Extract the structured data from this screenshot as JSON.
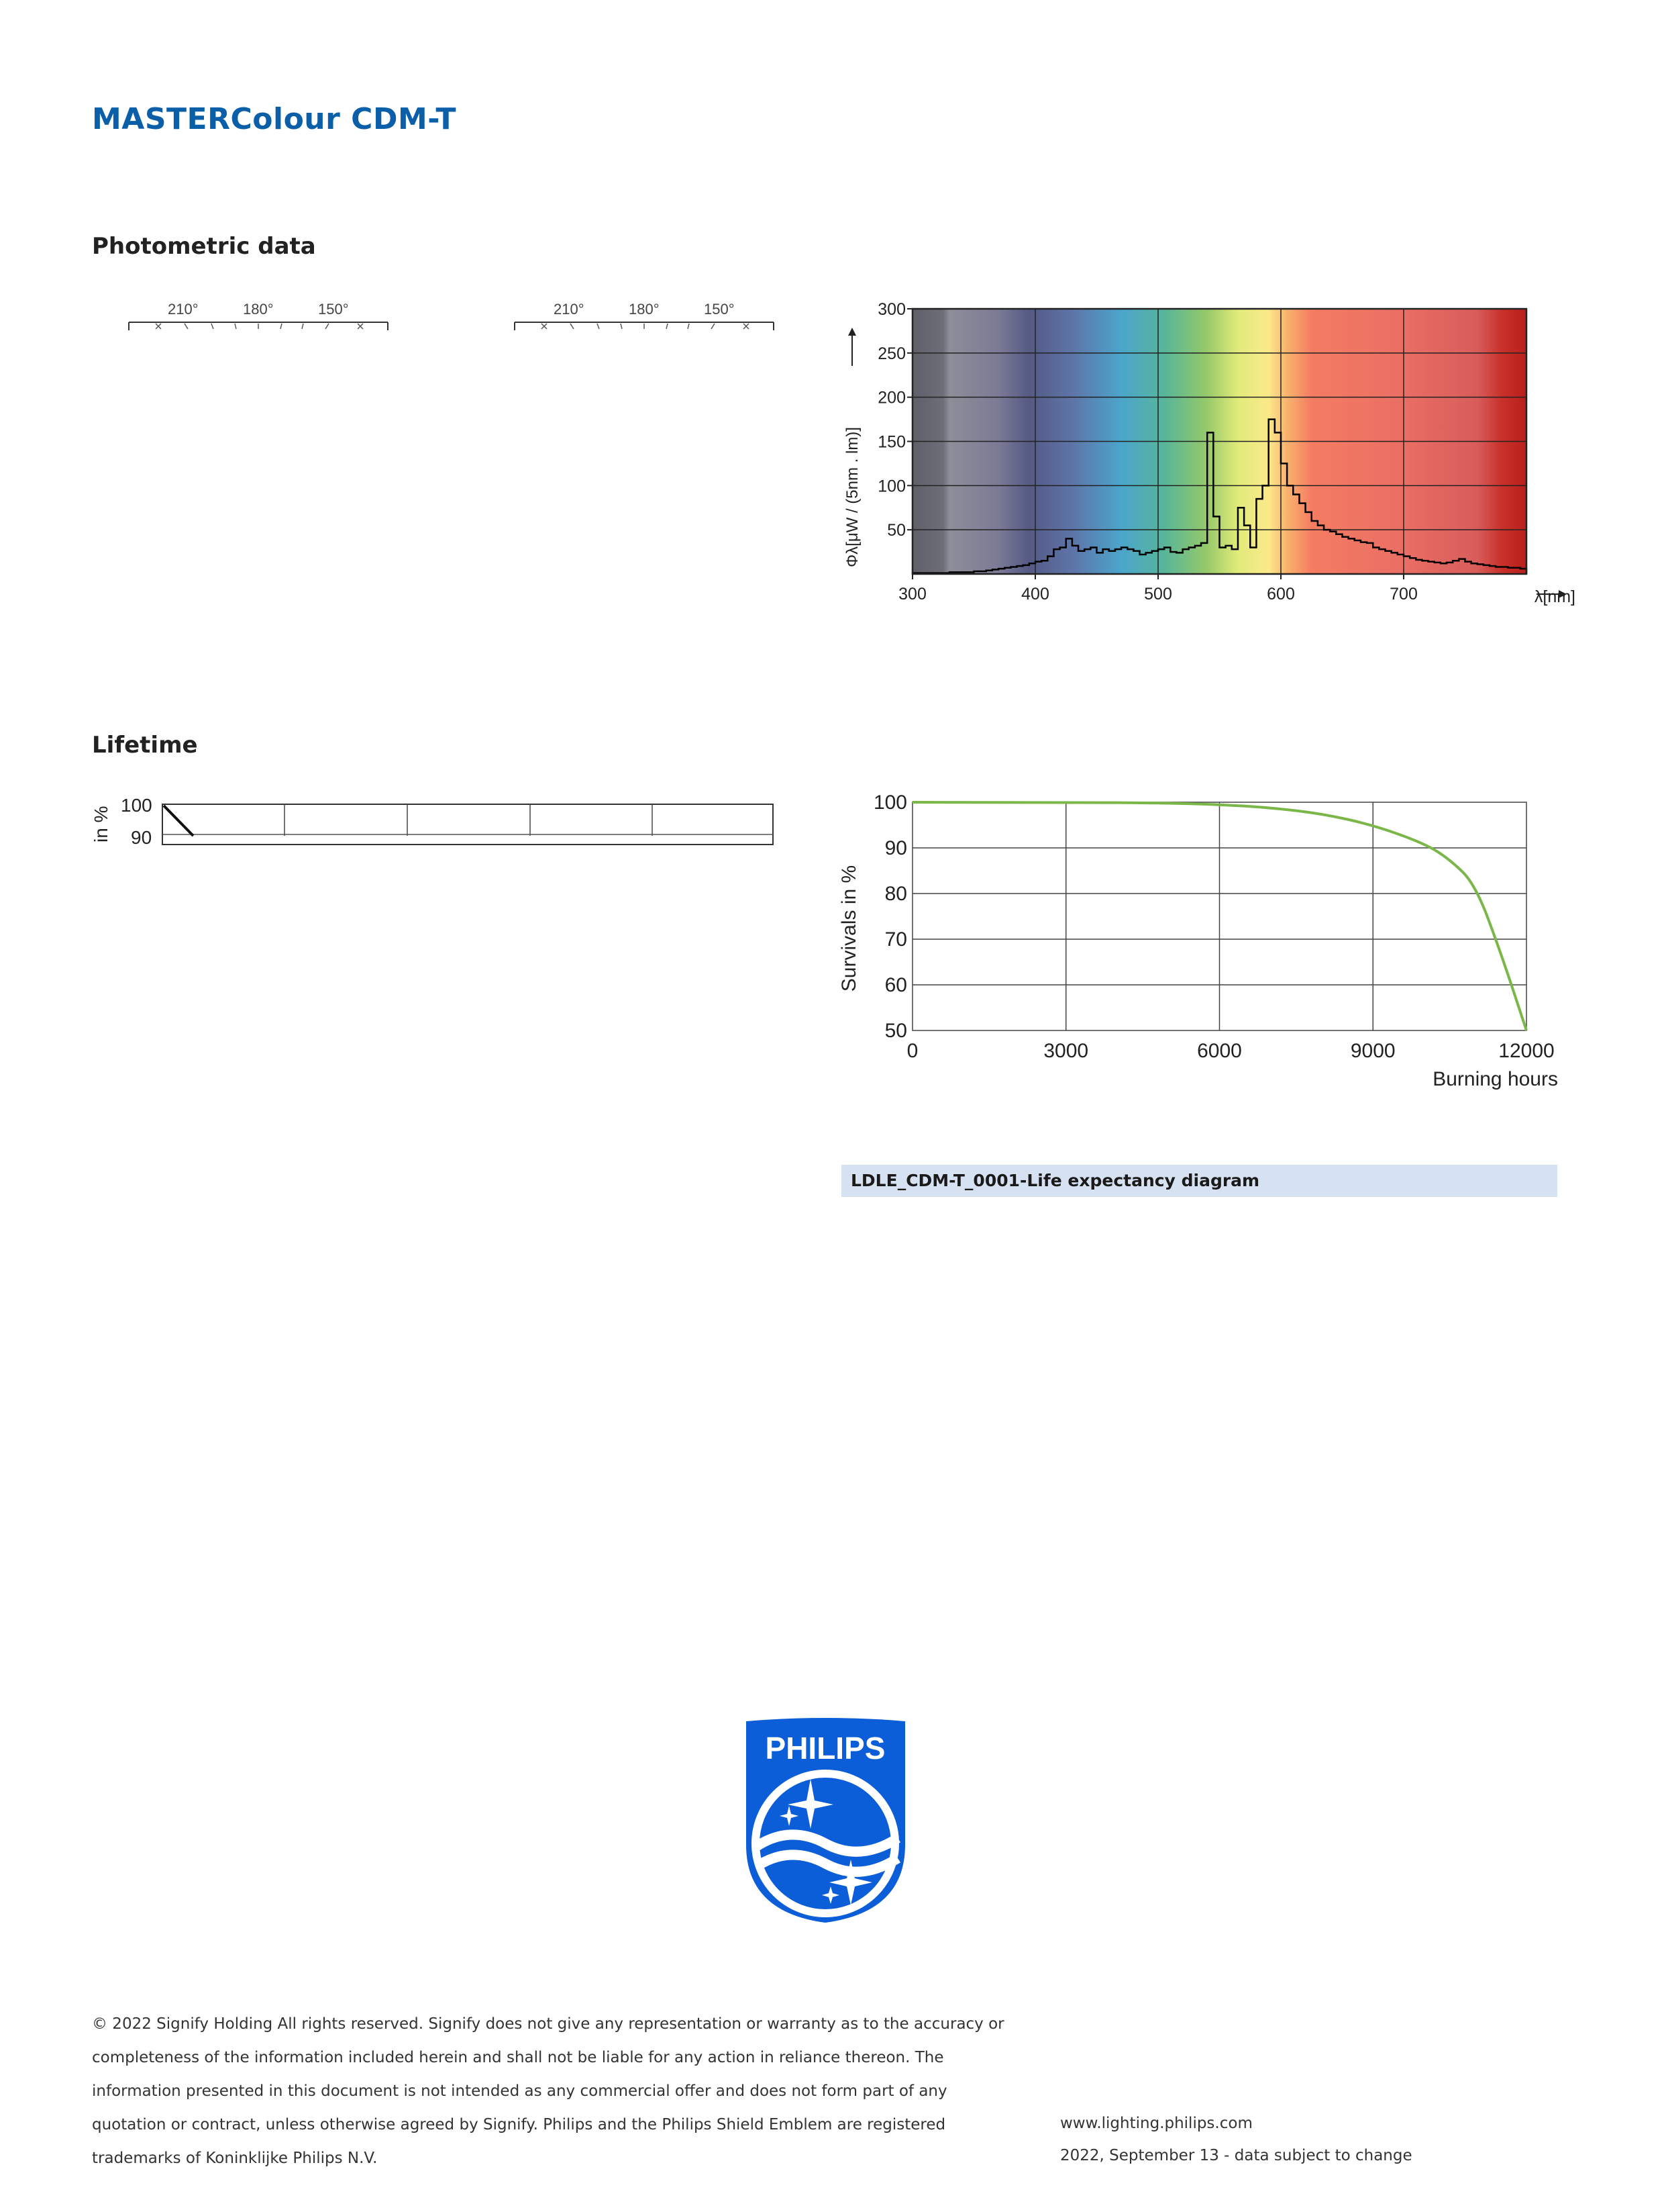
{
  "header": {
    "title": "MASTERColour CDM-T"
  },
  "photometric": {
    "heading": "Photometric data",
    "polar_left_ticks": [
      "210°",
      "180°",
      "150°"
    ],
    "polar_right_ticks": [
      "210°",
      "180°",
      "150°"
    ]
  },
  "spectrum_chart": {
    "ylabel": "Φλ[μW / (5nm . lm)]",
    "xlabel": "λ[nm]",
    "x_ticks": [
      "300",
      "400",
      "500",
      "600",
      "700"
    ],
    "y_ticks": [
      "50",
      "100",
      "150",
      "200",
      "250",
      "300"
    ]
  },
  "lifetime": {
    "heading": "Lifetime",
    "left_ylabel": "in %",
    "left_ticks": [
      "100",
      "90"
    ]
  },
  "chart_data": [
    {
      "type": "area",
      "xlabel": "λ[nm]",
      "ylabel": "Φλ[μW / (5nm . lm)]",
      "xlim": [
        300,
        800
      ],
      "ylim": [
        0,
        300
      ],
      "grid": true,
      "x": [
        300,
        305,
        310,
        315,
        320,
        325,
        330,
        335,
        340,
        345,
        350,
        355,
        360,
        365,
        370,
        375,
        380,
        385,
        390,
        395,
        400,
        405,
        410,
        415,
        420,
        425,
        430,
        435,
        440,
        445,
        450,
        455,
        460,
        465,
        470,
        475,
        480,
        485,
        490,
        495,
        500,
        505,
        510,
        515,
        520,
        525,
        530,
        535,
        540,
        545,
        550,
        555,
        560,
        565,
        570,
        575,
        580,
        585,
        590,
        595,
        600,
        605,
        610,
        615,
        620,
        625,
        630,
        635,
        640,
        645,
        650,
        655,
        660,
        665,
        670,
        675,
        680,
        685,
        690,
        695,
        700,
        705,
        710,
        715,
        720,
        725,
        730,
        735,
        740,
        745,
        750,
        755,
        760,
        765,
        770,
        775,
        780,
        785,
        790,
        795
      ],
      "values": [
        1,
        1,
        1,
        1,
        1,
        1,
        2,
        2,
        2,
        2,
        3,
        3,
        4,
        5,
        6,
        7,
        8,
        9,
        10,
        12,
        14,
        15,
        20,
        28,
        30,
        40,
        32,
        26,
        28,
        30,
        24,
        28,
        26,
        28,
        30,
        28,
        26,
        22,
        24,
        26,
        28,
        30,
        25,
        24,
        28,
        30,
        32,
        35,
        160,
        65,
        30,
        32,
        28,
        75,
        55,
        30,
        85,
        100,
        175,
        160,
        125,
        100,
        90,
        80,
        70,
        60,
        55,
        50,
        48,
        45,
        42,
        40,
        38,
        36,
        35,
        30,
        28,
        26,
        24,
        22,
        20,
        18,
        16,
        15,
        14,
        13,
        12,
        13,
        15,
        17,
        14,
        12,
        11,
        10,
        9,
        8,
        8,
        7,
        7,
        6
      ]
    },
    {
      "type": "line",
      "xlabel": "Burning hours",
      "ylabel": "Survivals in %",
      "xlim": [
        0,
        12000
      ],
      "ylim": [
        50,
        100
      ],
      "x_ticks": [
        "0",
        "3000",
        "6000",
        "9000",
        "12000"
      ],
      "y_ticks": [
        "50",
        "60",
        "70",
        "80",
        "90",
        "100"
      ],
      "grid": true,
      "line_color": "#7ab648",
      "x": [
        0,
        3000,
        5000,
        6000,
        7000,
        8000,
        9000,
        10000,
        10500,
        11000,
        11500,
        12000
      ],
      "values": [
        100,
        100,
        99.8,
        99.5,
        98.8,
        97.5,
        95.0,
        91.0,
        87.5,
        82.0,
        67.0,
        50.0
      ]
    }
  ],
  "life_caption": "LDLE_CDM-T_0001-Life expectancy diagram",
  "logo": {
    "text": "PHILIPS",
    "color": "#0b5ed7"
  },
  "footer": {
    "line1": "© 2022 Signify Holding All rights reserved. Signify does not give any representation or warranty as to the accuracy or",
    "line2": "completeness of the information included herein and shall not be liable for any action in reliance thereon. The",
    "line3": "information presented in this document is not intended as any commercial offer and does not form part of any",
    "line4": "quotation or contract, unless otherwise agreed by Signify. Philips and the Philips Shield Emblem are registered",
    "line5": "trademarks of Koninklijke Philips N.V.",
    "url": "www.lighting.philips.com",
    "date": "2022, September 13 - data subject to change"
  }
}
